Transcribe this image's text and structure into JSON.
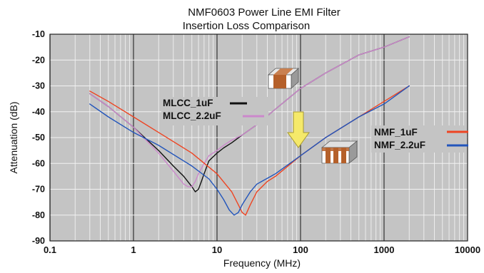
{
  "chart_data": {
    "type": "line",
    "title": "NMF0603 Power Line EMI Filter",
    "subtitle": "Insertion Loss Comparison",
    "xlabel": "Frequency (MHz)",
    "ylabel": "Attenuation (dB)",
    "xscale": "log",
    "xlim": [
      0.1,
      10000
    ],
    "ylim": [
      -90,
      -10
    ],
    "xticks": [
      "0.1",
      "1",
      "10",
      "100",
      "1000",
      "10000"
    ],
    "yticks": [
      "-10",
      "-20",
      "-30",
      "-40",
      "-50",
      "-60",
      "-70",
      "-80",
      "-90"
    ],
    "grid": true,
    "background": "#c4c4c4",
    "legend_groups": [
      {
        "position": "center-left",
        "entries": [
          "MLCC_1uF",
          "MLCC_2.2uF"
        ]
      },
      {
        "position": "right",
        "entries": [
          "NMF_1uF",
          "NMF_2.2uF"
        ]
      }
    ],
    "series": [
      {
        "name": "MLCC_1uF",
        "color": "#111111",
        "x": [
          0.3,
          0.5,
          1,
          2,
          3,
          4,
          5,
          5.5,
          6,
          6.5,
          7,
          8,
          10,
          12,
          15,
          20,
          30,
          50,
          100,
          200,
          500,
          1000,
          2000
        ],
        "y": [
          -33,
          -38,
          -46,
          -55,
          -61,
          -65,
          -69,
          -71,
          -70,
          -67,
          -64,
          -59,
          -56,
          -54,
          -52,
          -49,
          -45,
          -39,
          -31,
          -25,
          -18,
          -15,
          -11
        ]
      },
      {
        "name": "MLCC_2.2uF",
        "color": "#cc88cc",
        "x": [
          0.3,
          0.5,
          1,
          2,
          3,
          4,
          4.5,
          5,
          5.5,
          6,
          7,
          8,
          10,
          12,
          15,
          20,
          30,
          50,
          100,
          200,
          500,
          1000,
          2000
        ],
        "y": [
          -33,
          -38,
          -46,
          -56,
          -63,
          -68,
          -69,
          -69,
          -67,
          -64,
          -60,
          -57,
          -55,
          -53,
          -51,
          -49,
          -45,
          -39,
          -31,
          -25,
          -18,
          -15,
          -11
        ]
      },
      {
        "name": "NMF_1uF",
        "color": "#ee4422",
        "x": [
          0.3,
          0.5,
          1,
          2,
          5,
          10,
          15,
          18,
          20,
          22,
          25,
          30,
          40,
          50,
          100,
          200,
          500,
          1000,
          2000
        ],
        "y": [
          -32,
          -36,
          -42,
          -48,
          -56,
          -64,
          -71,
          -76,
          -79,
          -80,
          -76,
          -71,
          -67,
          -65,
          -57,
          -50,
          -42,
          -36,
          -30
        ]
      },
      {
        "name": "NMF_2.2uF",
        "color": "#2255bb",
        "x": [
          0.3,
          0.5,
          1,
          2,
          5,
          8,
          10,
          12,
          14,
          16,
          18,
          20,
          25,
          30,
          50,
          100,
          200,
          500,
          1000,
          2000
        ],
        "y": [
          -37,
          -42,
          -48,
          -53,
          -61,
          -66,
          -70,
          -74,
          -78,
          -80,
          -79,
          -76,
          -71,
          -68,
          -64,
          -57,
          -50,
          -42,
          -37,
          -30
        ]
      }
    ]
  },
  "legend_lines": {
    "stroke_width": 3
  },
  "annotations": {
    "arrow_color": "#f5e96a",
    "component_body_color": "#ffffff",
    "component_terminal_color": "#b5602a"
  }
}
